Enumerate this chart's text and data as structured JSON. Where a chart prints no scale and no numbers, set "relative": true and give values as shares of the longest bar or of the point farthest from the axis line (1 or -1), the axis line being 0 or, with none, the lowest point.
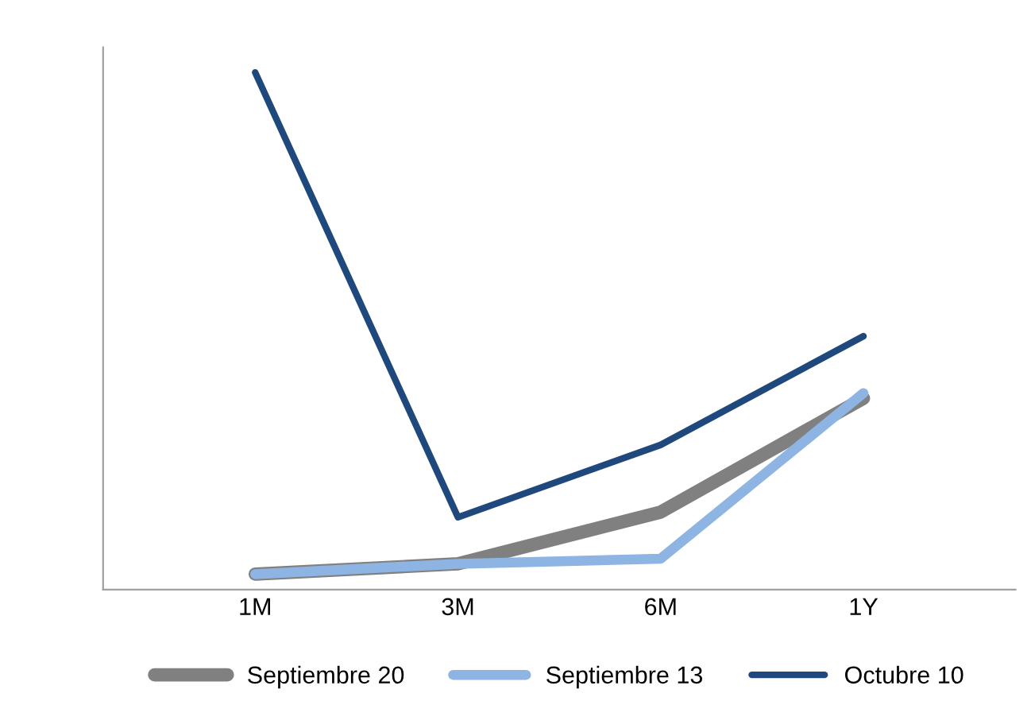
{
  "chart_data": {
    "type": "line",
    "relative": true,
    "categories": [
      "1M",
      "3M",
      "6M",
      "1Y"
    ],
    "series": [
      {
        "name": "Septiembre 20",
        "color": "#808080",
        "values": [
          0.03,
          0.05,
          0.15,
          0.37
        ]
      },
      {
        "name": "Septiembre 13",
        "color": "#8db4e2",
        "values": [
          0.03,
          0.05,
          0.06,
          0.38
        ]
      },
      {
        "name": "Octubre 10",
        "color": "#1f497d",
        "values": [
          1.0,
          0.14,
          0.28,
          0.49
        ]
      }
    ],
    "legend": "bottom",
    "marker": "none",
    "line_style": "solid"
  }
}
